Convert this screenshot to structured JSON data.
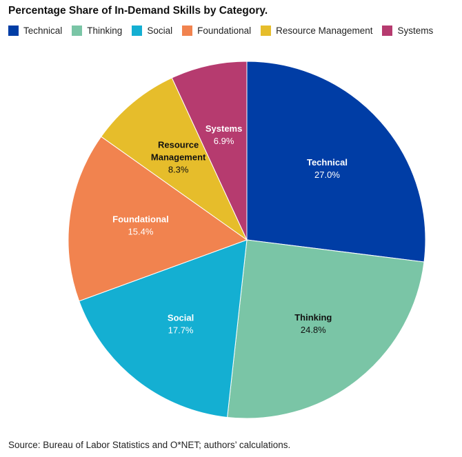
{
  "chart_data": {
    "type": "pie",
    "title": "Percentage Share of In-Demand Skills by Category.",
    "legend_position": "top",
    "slices": [
      {
        "label": "Technical",
        "value": 27.0,
        "display": "27.0%",
        "color": "#003DA5",
        "text_color": "#ffffff"
      },
      {
        "label": "Thinking",
        "value": 24.8,
        "display": "24.8%",
        "color": "#7AC5A6",
        "text_color": "#111111"
      },
      {
        "label": "Social",
        "value": 17.7,
        "display": "17.7%",
        "color": "#14AFD2",
        "text_color": "#ffffff"
      },
      {
        "label": "Foundational",
        "value": 15.4,
        "display": "15.4%",
        "color": "#F1834F",
        "text_color": "#ffffff"
      },
      {
        "label": "Resource Management",
        "label_lines": [
          "Resource",
          "Management"
        ],
        "value": 8.3,
        "display": "8.3%",
        "color": "#E6BD2B",
        "text_color": "#111111"
      },
      {
        "label": "Systems",
        "value": 6.9,
        "display": "6.9%",
        "color": "#B63B6F",
        "text_color": "#ffffff"
      }
    ]
  },
  "source": "Source: Bureau of Labor Statistics and O*NET; authors’ calculations."
}
